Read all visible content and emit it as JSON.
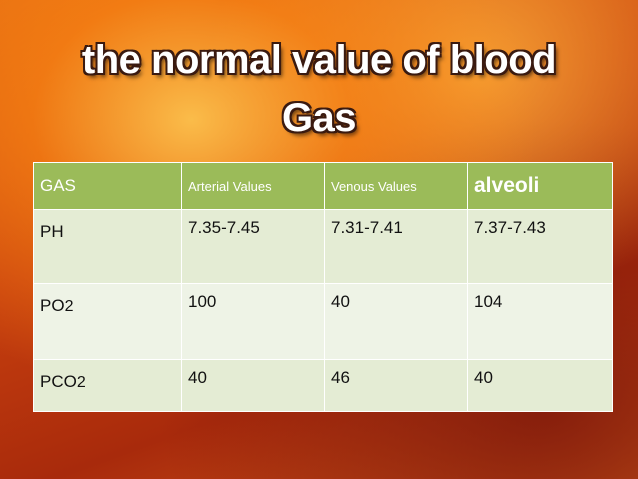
{
  "title": {
    "line1": "the normal value of blood",
    "line2": "Gas"
  },
  "table": {
    "header": [
      "GAS",
      "Arterial Values",
      "Venous Values",
      "alveoli"
    ],
    "rows": [
      {
        "label": {
          "main": "PH",
          "sub": ""
        },
        "cells": [
          "7.35-7.45",
          "7.31-7.41",
          "7.37-7.43"
        ]
      },
      {
        "label": {
          "main": "PO",
          "sub": "2"
        },
        "cells": [
          "100",
          "40",
          "104"
        ]
      },
      {
        "label": {
          "main": "PCO",
          "sub": "2"
        },
        "cells": [
          "40",
          "46",
          "40"
        ]
      }
    ]
  }
}
